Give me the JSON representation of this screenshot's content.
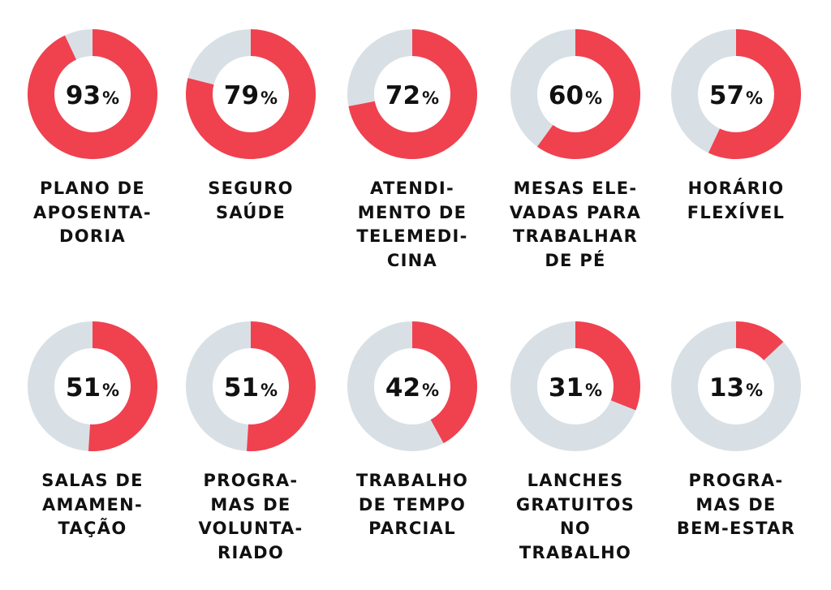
{
  "colors": {
    "accent": "#f0414f",
    "track": "#d8e0e5",
    "text": "#111111"
  },
  "chart_data": {
    "type": "donut",
    "percent_sign": "%",
    "items": [
      {
        "value": 93,
        "value_label": "93",
        "label_lines": [
          "PLANO DE",
          "APOSENTA-",
          "DORIA"
        ]
      },
      {
        "value": 79,
        "value_label": "79",
        "label_lines": [
          "SEGURO",
          "SAÚDE"
        ]
      },
      {
        "value": 72,
        "value_label": "72",
        "label_lines": [
          "ATENDI-",
          "MENTO DE",
          "TELEMEDI-",
          "CINA"
        ]
      },
      {
        "value": 60,
        "value_label": "60",
        "label_lines": [
          "MESAS ELE-",
          "VADAS PARA",
          "TRABALHAR",
          "DE PÉ"
        ]
      },
      {
        "value": 57,
        "value_label": "57",
        "label_lines": [
          "HORÁRIO",
          "FLEXÍVEL"
        ]
      },
      {
        "value": 51,
        "value_label": "51",
        "label_lines": [
          "SALAS DE",
          "AMAMEN-",
          "TAÇÃO"
        ]
      },
      {
        "value": 51,
        "value_label": "51",
        "label_lines": [
          "PROGRA-",
          "MAS DE",
          "VOLUNTA-",
          "RIADO"
        ]
      },
      {
        "value": 42,
        "value_label": "42",
        "label_lines": [
          "TRABALHO",
          "DE TEMPO",
          "PARCIAL"
        ]
      },
      {
        "value": 31,
        "value_label": "31",
        "label_lines": [
          "LANCHES",
          "GRATUITOS",
          "NO",
          "TRABALHO"
        ]
      },
      {
        "value": 13,
        "value_label": "13",
        "label_lines": [
          "PROGRA-",
          "MAS DE",
          "BEM-ESTAR"
        ]
      }
    ]
  }
}
